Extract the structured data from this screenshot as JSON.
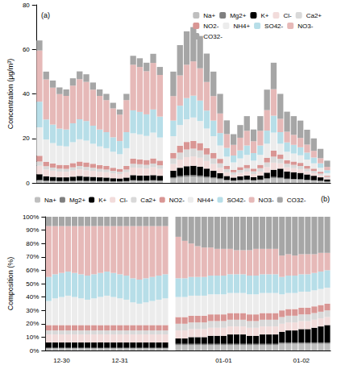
{
  "chart_data": [
    {
      "type": "bar",
      "title": "(a)",
      "y_label": "Concentration (μg/m³)",
      "stacked": true,
      "grid": false,
      "legend": "top-right",
      "tick_labels": "y",
      "ylim": [
        0,
        80
      ],
      "yticks": [
        0,
        20,
        40,
        60,
        80
      ],
      "categories": [
        null,
        null,
        null,
        null,
        null,
        null,
        null,
        null,
        null,
        null,
        null,
        null,
        null,
        null,
        null,
        null,
        null,
        null,
        null,
        null,
        null,
        null,
        null,
        null,
        null,
        null,
        null,
        null,
        null,
        null,
        null,
        null,
        null,
        null,
        null,
        null,
        null,
        null,
        null,
        null,
        null,
        null,
        null,
        null
      ],
      "series": [
        {
          "name": "Na+",
          "color": "#bfbfbf",
          "values": [
            1.0,
            0.8,
            0.7,
            0.6,
            0.6,
            0.7,
            0.8,
            0.7,
            0.7,
            0.6,
            0.6,
            0.5,
            0.5,
            0.6,
            0.9,
            0.8,
            0.8,
            0.9,
            0.8,
            null,
            2.0,
            2.5,
            2.7,
            2.8,
            2.6,
            2.3,
            2.0,
            1.6,
            1.1,
            0.9,
            1.0,
            1.2,
            1.0,
            1.2,
            1.7,
            2.2,
            2.0,
            1.6,
            1.5,
            1.4,
            1.2,
            1.0,
            0.8,
            0.5
          ]
        },
        {
          "name": "Mg2+",
          "color": "#7f7f7f",
          "values": [
            0.3,
            0.2,
            0.2,
            0.2,
            0.2,
            0.2,
            0.3,
            0.2,
            0.2,
            0.2,
            0.2,
            0.2,
            0.2,
            0.2,
            0.3,
            0.3,
            0.3,
            0.3,
            0.3,
            null,
            0.5,
            0.6,
            0.7,
            0.7,
            0.7,
            0.6,
            0.5,
            0.4,
            0.3,
            0.2,
            0.3,
            0.3,
            0.2,
            0.3,
            0.4,
            0.5,
            0.4,
            0.3,
            0.3,
            0.3,
            0.2,
            0.2,
            0.2,
            0.1
          ]
        },
        {
          "name": "K+",
          "color": "#000000",
          "values": [
            2.6,
            2.0,
            1.8,
            1.7,
            1.7,
            1.9,
            2.0,
            1.9,
            1.8,
            1.7,
            1.6,
            1.4,
            1.3,
            1.6,
            2.3,
            2.2,
            2.2,
            2.3,
            2.1,
            null,
            3.0,
            3.7,
            4.1,
            4.2,
            4.0,
            3.5,
            3.0,
            2.4,
            1.7,
            1.3,
            1.6,
            1.8,
            1.4,
            1.8,
            2.5,
            3.2,
            4.0,
            3.2,
            3.0,
            2.8,
            2.4,
            2.0,
            1.5,
            1.0
          ]
        },
        {
          "name": "Cl-",
          "color": "#f2dcdb",
          "values": [
            3.8,
            3.0,
            2.8,
            2.6,
            2.5,
            2.8,
            3.0,
            2.9,
            2.7,
            2.5,
            2.4,
            2.2,
            2.0,
            2.4,
            3.4,
            3.4,
            3.2,
            3.5,
            3.1,
            null,
            3.0,
            3.7,
            4.1,
            4.2,
            4.0,
            3.5,
            3.0,
            2.4,
            1.7,
            1.3,
            1.6,
            1.8,
            1.4,
            1.8,
            2.5,
            3.2,
            2.4,
            1.9,
            1.8,
            1.7,
            1.4,
            1.2,
            0.9,
            0.6
          ]
        },
        {
          "name": "Ca2+",
          "color": "#d9d9d9",
          "values": [
            1.9,
            1.5,
            1.4,
            1.3,
            1.3,
            1.4,
            1.5,
            1.5,
            1.4,
            1.3,
            1.2,
            1.1,
            1.0,
            1.2,
            1.7,
            1.7,
            1.6,
            1.7,
            1.6,
            null,
            2.5,
            3.1,
            3.4,
            3.5,
            3.3,
            2.9,
            2.5,
            2.0,
            1.4,
            1.1,
            1.3,
            1.5,
            1.2,
            1.5,
            2.1,
            2.7,
            2.0,
            1.6,
            1.5,
            1.4,
            1.2,
            1.0,
            0.8,
            0.5
          ]
        },
        {
          "name": "NO2-",
          "color": "#d99694",
          "values": [
            2.6,
            2.0,
            1.8,
            1.7,
            1.7,
            1.9,
            2.0,
            2.0,
            1.8,
            1.7,
            1.6,
            1.4,
            1.3,
            1.6,
            2.3,
            2.2,
            2.2,
            2.3,
            2.1,
            null,
            2.5,
            3.1,
            3.4,
            3.5,
            3.3,
            2.9,
            2.5,
            2.0,
            1.4,
            1.1,
            1.3,
            1.5,
            1.2,
            1.5,
            2.1,
            2.7,
            2.0,
            1.6,
            1.5,
            1.4,
            1.2,
            1.0,
            0.8,
            0.5
          ]
        },
        {
          "name": "NH4+",
          "color": "#ececec",
          "values": [
            12.8,
            10.0,
            9.2,
            8.6,
            8.4,
            9.4,
            10.0,
            9.8,
            9.0,
            8.4,
            8.0,
            7.2,
            6.6,
            8.0,
            11.4,
            11.2,
            10.8,
            11.6,
            10.4,
            null,
            7.5,
            9.3,
            10.2,
            10.5,
            9.9,
            8.7,
            7.5,
            6.0,
            4.2,
            3.3,
            3.9,
            4.5,
            3.6,
            4.5,
            6.3,
            8.1,
            4.8,
            3.8,
            3.6,
            3.4,
            2.9,
            2.4,
            1.8,
            1.2
          ]
        },
        {
          "name": "SO42-",
          "color": "#b7dee8",
          "values": [
            11.5,
            9.0,
            8.3,
            7.7,
            7.6,
            8.5,
            9.0,
            8.8,
            8.1,
            7.6,
            7.2,
            6.5,
            5.9,
            7.2,
            10.3,
            10.1,
            9.7,
            10.4,
            9.4,
            null,
            7.0,
            8.7,
            9.5,
            9.8,
            9.2,
            8.1,
            7.0,
            5.6,
            3.9,
            3.1,
            3.6,
            4.2,
            3.4,
            4.2,
            5.9,
            7.6,
            5.2,
            4.2,
            3.9,
            3.6,
            3.1,
            2.6,
            2.0,
            1.3
          ]
        },
        {
          "name": "NO3-",
          "color": "#e6b9b8",
          "values": [
            23.0,
            18.0,
            16.6,
            15.5,
            15.1,
            16.9,
            18.0,
            17.6,
            16.2,
            15.1,
            14.4,
            13.0,
            11.9,
            14.4,
            20.5,
            20.2,
            19.4,
            20.9,
            18.7,
            null,
            11.0,
            13.6,
            15.0,
            15.4,
            14.5,
            12.8,
            11.0,
            8.8,
            6.2,
            4.8,
            5.7,
            6.6,
            5.3,
            6.6,
            9.2,
            11.9,
            6.0,
            4.8,
            4.5,
            4.2,
            3.6,
            3.0,
            2.3,
            1.5
          ]
        },
        {
          "name": "CO32-",
          "color": "#a6a6a6",
          "values": [
            4.5,
            3.5,
            3.2,
            3.0,
            2.9,
            3.3,
            3.5,
            3.4,
            3.2,
            2.9,
            2.8,
            2.5,
            2.3,
            2.8,
            4.0,
            3.9,
            3.8,
            4.1,
            3.6,
            null,
            11.0,
            13.6,
            15.0,
            15.4,
            14.5,
            12.8,
            11.0,
            8.8,
            6.2,
            4.8,
            5.7,
            6.6,
            5.3,
            6.6,
            9.2,
            11.9,
            11.2,
            9.0,
            8.4,
            7.8,
            6.7,
            5.6,
            4.2,
            2.8
          ]
        }
      ]
    },
    {
      "type": "bar",
      "title": "(b)",
      "y_label": "Composition (%)",
      "stacked": true,
      "grid": false,
      "legend": "top",
      "ylim": [
        0,
        100
      ],
      "yticks": [
        {
          "value": 0,
          "label": "0%"
        },
        {
          "value": 10,
          "label": "10%"
        },
        {
          "value": 20,
          "label": "20%"
        },
        {
          "value": 30,
          "label": "30%"
        },
        {
          "value": 40,
          "label": "40%"
        },
        {
          "value": 50,
          "label": "50%"
        },
        {
          "value": 60,
          "label": "60%"
        },
        {
          "value": 70,
          "label": "70%"
        },
        {
          "value": 80,
          "label": "80%"
        },
        {
          "value": 90,
          "label": "90%"
        },
        {
          "value": 100,
          "label": "100%"
        }
      ],
      "categories": [
        null,
        null,
        "12-30",
        null,
        null,
        null,
        null,
        null,
        null,
        null,
        null,
        "12-31",
        null,
        null,
        null,
        null,
        null,
        null,
        null,
        null,
        null,
        null,
        null,
        null,
        null,
        null,
        null,
        "01-01",
        null,
        null,
        null,
        null,
        null,
        null,
        null,
        null,
        null,
        null,
        null,
        "01-02",
        null,
        null,
        null,
        null
      ],
      "series": [
        {
          "name": "Na+",
          "color": "#bfbfbf",
          "values": [
            1.5,
            1.5,
            1.5,
            1.5,
            1.5,
            1.5,
            1.5,
            1.5,
            1.5,
            1.5,
            1.5,
            1.5,
            1.5,
            1.5,
            1.5,
            1.5,
            1.5,
            1.5,
            1.5,
            null,
            4,
            4,
            4,
            4,
            4,
            4,
            4,
            4,
            4,
            4,
            4,
            4,
            4,
            4,
            4,
            4,
            5,
            5,
            5,
            5,
            5,
            5,
            5,
            5
          ]
        },
        {
          "name": "Mg2+",
          "color": "#7f7f7f",
          "values": [
            0.5,
            0.5,
            0.5,
            0.5,
            0.5,
            0.5,
            0.5,
            0.5,
            0.5,
            0.5,
            0.5,
            0.5,
            0.5,
            0.5,
            0.5,
            0.5,
            0.5,
            0.5,
            0.5,
            null,
            1,
            1,
            1,
            1,
            1,
            1,
            1,
            1,
            1,
            1,
            1,
            1,
            1,
            1,
            1,
            1,
            1,
            1,
            1,
            1,
            1,
            1,
            1,
            1
          ]
        },
        {
          "name": "K+",
          "color": "#000000",
          "values": [
            4,
            4,
            4,
            4,
            4,
            4,
            4,
            4,
            4,
            4,
            4,
            4,
            4,
            4,
            4,
            4,
            4,
            4,
            4,
            null,
            4,
            4,
            5,
            5,
            5,
            6,
            6,
            6,
            7,
            7,
            7,
            6,
            6,
            7,
            7,
            7,
            8,
            9,
            9,
            10,
            10,
            11,
            12,
            13
          ]
        },
        {
          "name": "Cl-",
          "color": "#f2dcdb",
          "values": [
            6,
            6,
            6,
            6,
            6,
            6,
            6,
            6,
            6,
            6,
            6,
            6,
            6,
            6,
            6,
            6,
            6,
            6,
            6,
            null,
            6,
            6,
            6,
            6,
            6,
            6,
            6,
            6,
            6,
            6,
            6,
            6,
            6,
            6,
            6,
            6,
            6,
            6,
            6,
            6,
            6,
            6,
            6,
            6
          ]
        },
        {
          "name": "Ca2+",
          "color": "#d9d9d9",
          "values": [
            3,
            3,
            3,
            3,
            3,
            3,
            3,
            3,
            3,
            3,
            3,
            3,
            3,
            3,
            3,
            3,
            3,
            3,
            3,
            null,
            5,
            5,
            5,
            5,
            5,
            5,
            5,
            5,
            5,
            5,
            5,
            5,
            5,
            5,
            5,
            5,
            5,
            5,
            5,
            5,
            5,
            5,
            5,
            5
          ]
        },
        {
          "name": "NO2-",
          "color": "#d99694",
          "values": [
            4,
            4,
            4,
            4,
            4,
            4,
            4,
            4,
            4,
            4,
            4,
            4,
            4,
            4,
            4,
            4,
            4,
            4,
            4,
            null,
            5,
            5,
            5,
            5,
            5,
            5,
            5,
            5,
            5,
            5,
            5,
            5,
            5,
            5,
            5,
            5,
            5,
            5,
            5,
            5,
            5,
            5,
            5,
            5
          ]
        },
        {
          "name": "NH4+",
          "color": "#ececec",
          "values": [
            18,
            20,
            21,
            22,
            21,
            20,
            19,
            20,
            21,
            22,
            21,
            20,
            19,
            17,
            16,
            17,
            18,
            19,
            20,
            null,
            15,
            15,
            15,
            15,
            15,
            15,
            15,
            15,
            15,
            15,
            15,
            15,
            15,
            15,
            15,
            15,
            12,
            12,
            12,
            12,
            12,
            12,
            12,
            12
          ]
        },
        {
          "name": "SO42-",
          "color": "#b7dee8",
          "values": [
            18,
            18,
            18,
            18,
            18,
            18,
            18,
            18,
            18,
            18,
            18,
            18,
            18,
            18,
            18,
            18,
            18,
            18,
            18,
            null,
            14,
            14,
            14,
            14,
            14,
            14,
            14,
            14,
            14,
            14,
            14,
            14,
            14,
            14,
            14,
            14,
            13,
            13,
            13,
            13,
            13,
            13,
            13,
            13
          ]
        },
        {
          "name": "NO3-",
          "color": "#e6b9b8",
          "values": [
            38,
            36,
            35,
            34,
            35,
            36,
            37,
            36,
            35,
            34,
            35,
            36,
            37,
            39,
            40,
            39,
            38,
            37,
            36,
            null,
            31,
            28,
            25,
            23,
            22,
            21,
            20,
            20,
            19,
            18,
            18,
            19,
            20,
            19,
            19,
            19,
            16,
            16,
            15,
            15,
            15,
            14,
            14,
            13
          ]
        },
        {
          "name": "CO32-",
          "color": "#a6a6a6",
          "values": [
            7,
            7,
            7,
            7,
            7,
            7,
            7,
            7,
            7,
            7,
            7,
            7,
            7,
            7,
            7,
            7,
            7,
            7,
            7,
            null,
            15,
            18,
            20,
            22,
            23,
            23,
            24,
            24,
            24,
            25,
            25,
            25,
            24,
            24,
            24,
            24,
            29,
            28,
            29,
            28,
            28,
            28,
            27,
            27
          ]
        }
      ]
    }
  ]
}
